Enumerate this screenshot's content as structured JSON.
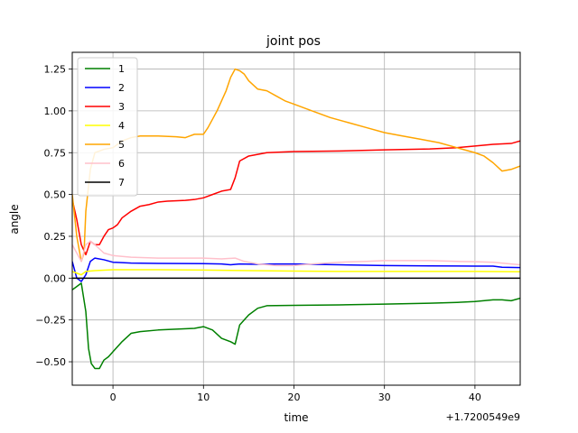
{
  "chart_data": {
    "type": "line",
    "title": "joint pos",
    "xlabel": "time",
    "ylabel": "angle",
    "x_offset_label": "+1.7200549e9",
    "xlim": [
      -4.5,
      45
    ],
    "ylim": [
      -0.64,
      1.35
    ],
    "grid": true,
    "legend_position": "top-left",
    "xticks": [
      0,
      10,
      20,
      30,
      40
    ],
    "xtick_labels": [
      "0",
      "10",
      "20",
      "30",
      "40"
    ],
    "yticks": [
      -0.5,
      -0.25,
      0.0,
      0.25,
      0.5,
      0.75,
      1.0,
      1.25
    ],
    "ytick_labels": [
      "−0.50",
      "−0.25",
      "0.00",
      "0.25",
      "0.50",
      "0.75",
      "1.00",
      "1.25"
    ],
    "series": [
      {
        "name": "1",
        "color": "#008000",
        "points": [
          [
            -4.5,
            -0.07
          ],
          [
            -4.0,
            -0.05
          ],
          [
            -3.5,
            -0.03
          ],
          [
            -3.0,
            -0.2
          ],
          [
            -2.7,
            -0.42
          ],
          [
            -2.4,
            -0.51
          ],
          [
            -2.0,
            -0.54
          ],
          [
            -1.5,
            -0.54
          ],
          [
            -1.0,
            -0.49
          ],
          [
            -0.5,
            -0.47
          ],
          [
            0,
            -0.44
          ],
          [
            1,
            -0.38
          ],
          [
            2,
            -0.33
          ],
          [
            3,
            -0.32
          ],
          [
            5,
            -0.31
          ],
          [
            7,
            -0.305
          ],
          [
            9,
            -0.3
          ],
          [
            10,
            -0.29
          ],
          [
            11,
            -0.31
          ],
          [
            12,
            -0.36
          ],
          [
            13,
            -0.38
          ],
          [
            13.5,
            -0.395
          ],
          [
            14,
            -0.28
          ],
          [
            15,
            -0.22
          ],
          [
            16,
            -0.18
          ],
          [
            17,
            -0.165
          ],
          [
            20,
            -0.163
          ],
          [
            25,
            -0.16
          ],
          [
            30,
            -0.155
          ],
          [
            35,
            -0.15
          ],
          [
            38,
            -0.145
          ],
          [
            40,
            -0.14
          ],
          [
            42,
            -0.13
          ],
          [
            43,
            -0.13
          ],
          [
            44,
            -0.135
          ],
          [
            45,
            -0.12
          ]
        ]
      },
      {
        "name": "2",
        "color": "#0000ff",
        "points": [
          [
            -4.5,
            0.1
          ],
          [
            -4.0,
            0.0
          ],
          [
            -3.5,
            -0.02
          ],
          [
            -3.0,
            0.02
          ],
          [
            -2.5,
            0.1
          ],
          [
            -2.0,
            0.12
          ],
          [
            -1.0,
            0.11
          ],
          [
            0,
            0.095
          ],
          [
            2,
            0.09
          ],
          [
            5,
            0.088
          ],
          [
            10,
            0.087
          ],
          [
            12,
            0.085
          ],
          [
            13,
            0.08
          ],
          [
            14,
            0.085
          ],
          [
            16,
            0.083
          ],
          [
            18,
            0.085
          ],
          [
            20,
            0.085
          ],
          [
            22,
            0.083
          ],
          [
            25,
            0.08
          ],
          [
            30,
            0.075
          ],
          [
            35,
            0.073
          ],
          [
            40,
            0.072
          ],
          [
            42,
            0.072
          ],
          [
            43,
            0.065
          ],
          [
            45,
            0.063
          ]
        ]
      },
      {
        "name": "3",
        "color": "#ff0000",
        "points": [
          [
            -4.5,
            0.47
          ],
          [
            -4.0,
            0.35
          ],
          [
            -3.5,
            0.2
          ],
          [
            -3.0,
            0.14
          ],
          [
            -2.5,
            0.22
          ],
          [
            -2.0,
            0.2
          ],
          [
            -1.5,
            0.2
          ],
          [
            -1.0,
            0.25
          ],
          [
            -0.5,
            0.29
          ],
          [
            0,
            0.3
          ],
          [
            0.5,
            0.32
          ],
          [
            1,
            0.36
          ],
          [
            2,
            0.4
          ],
          [
            3,
            0.43
          ],
          [
            4,
            0.44
          ],
          [
            5,
            0.455
          ],
          [
            6,
            0.46
          ],
          [
            8,
            0.465
          ],
          [
            9,
            0.47
          ],
          [
            10,
            0.48
          ],
          [
            11,
            0.5
          ],
          [
            12,
            0.52
          ],
          [
            13,
            0.53
          ],
          [
            13.5,
            0.6
          ],
          [
            14,
            0.7
          ],
          [
            15,
            0.73
          ],
          [
            16,
            0.74
          ],
          [
            17,
            0.75
          ],
          [
            20,
            0.757
          ],
          [
            25,
            0.76
          ],
          [
            30,
            0.767
          ],
          [
            35,
            0.772
          ],
          [
            38,
            0.78
          ],
          [
            40,
            0.79
          ],
          [
            42,
            0.8
          ],
          [
            44,
            0.805
          ],
          [
            45,
            0.82
          ]
        ]
      },
      {
        "name": "4",
        "color": "#ffff00",
        "points": [
          [
            -4.5,
            0.04
          ],
          [
            -4.0,
            0.03
          ],
          [
            -3.5,
            0.02
          ],
          [
            -3.0,
            0.04
          ],
          [
            -2.0,
            0.045
          ],
          [
            0,
            0.05
          ],
          [
            5,
            0.05
          ],
          [
            10,
            0.048
          ],
          [
            15,
            0.045
          ],
          [
            20,
            0.042
          ],
          [
            25,
            0.04
          ],
          [
            30,
            0.04
          ],
          [
            35,
            0.04
          ],
          [
            40,
            0.04
          ],
          [
            45,
            0.038
          ]
        ]
      },
      {
        "name": "5",
        "color": "#ffa500",
        "points": [
          [
            -4.5,
            0.5
          ],
          [
            -4.0,
            0.25
          ],
          [
            -3.5,
            0.1
          ],
          [
            -3.2,
            0.15
          ],
          [
            -3.0,
            0.4
          ],
          [
            -2.5,
            0.65
          ],
          [
            -2.0,
            0.75
          ],
          [
            -1.5,
            0.76
          ],
          [
            -1.0,
            0.77
          ],
          [
            0,
            0.78
          ],
          [
            0.5,
            0.8
          ],
          [
            1,
            0.82
          ],
          [
            2,
            0.84
          ],
          [
            3,
            0.85
          ],
          [
            5,
            0.85
          ],
          [
            7,
            0.845
          ],
          [
            8,
            0.84
          ],
          [
            8.5,
            0.85
          ],
          [
            9,
            0.86
          ],
          [
            10,
            0.86
          ],
          [
            10.5,
            0.9
          ],
          [
            11,
            0.95
          ],
          [
            11.5,
            1.0
          ],
          [
            12,
            1.06
          ],
          [
            12.5,
            1.12
          ],
          [
            13,
            1.2
          ],
          [
            13.5,
            1.25
          ],
          [
            14,
            1.24
          ],
          [
            14.5,
            1.22
          ],
          [
            15,
            1.18
          ],
          [
            16,
            1.13
          ],
          [
            17,
            1.12
          ],
          [
            18,
            1.09
          ],
          [
            19,
            1.06
          ],
          [
            20,
            1.04
          ],
          [
            22,
            1.0
          ],
          [
            24,
            0.96
          ],
          [
            26,
            0.93
          ],
          [
            28,
            0.9
          ],
          [
            30,
            0.87
          ],
          [
            32,
            0.85
          ],
          [
            34,
            0.83
          ],
          [
            36,
            0.81
          ],
          [
            38,
            0.78
          ],
          [
            40,
            0.75
          ],
          [
            41,
            0.73
          ],
          [
            42,
            0.69
          ],
          [
            43,
            0.64
          ],
          [
            44,
            0.65
          ],
          [
            45,
            0.67
          ]
        ]
      },
      {
        "name": "6",
        "color": "#ffc0cb",
        "points": [
          [
            -4.5,
            0.2
          ],
          [
            -4.0,
            0.15
          ],
          [
            -3.5,
            0.1
          ],
          [
            -3.0,
            0.2
          ],
          [
            -2.5,
            0.22
          ],
          [
            -2.0,
            0.2
          ],
          [
            -1.0,
            0.15
          ],
          [
            0,
            0.135
          ],
          [
            2,
            0.125
          ],
          [
            5,
            0.12
          ],
          [
            10,
            0.12
          ],
          [
            12,
            0.115
          ],
          [
            13.5,
            0.12
          ],
          [
            14.5,
            0.1
          ],
          [
            16,
            0.085
          ],
          [
            18,
            0.075
          ],
          [
            20,
            0.075
          ],
          [
            22,
            0.085
          ],
          [
            25,
            0.095
          ],
          [
            28,
            0.1
          ],
          [
            30,
            0.105
          ],
          [
            35,
            0.105
          ],
          [
            38,
            0.1
          ],
          [
            40,
            0.098
          ],
          [
            42,
            0.095
          ],
          [
            44,
            0.085
          ],
          [
            45,
            0.08
          ]
        ]
      },
      {
        "name": "7",
        "color": "#000000",
        "points": [
          [
            -4.5,
            0.0
          ],
          [
            45,
            0.0
          ]
        ]
      }
    ]
  }
}
